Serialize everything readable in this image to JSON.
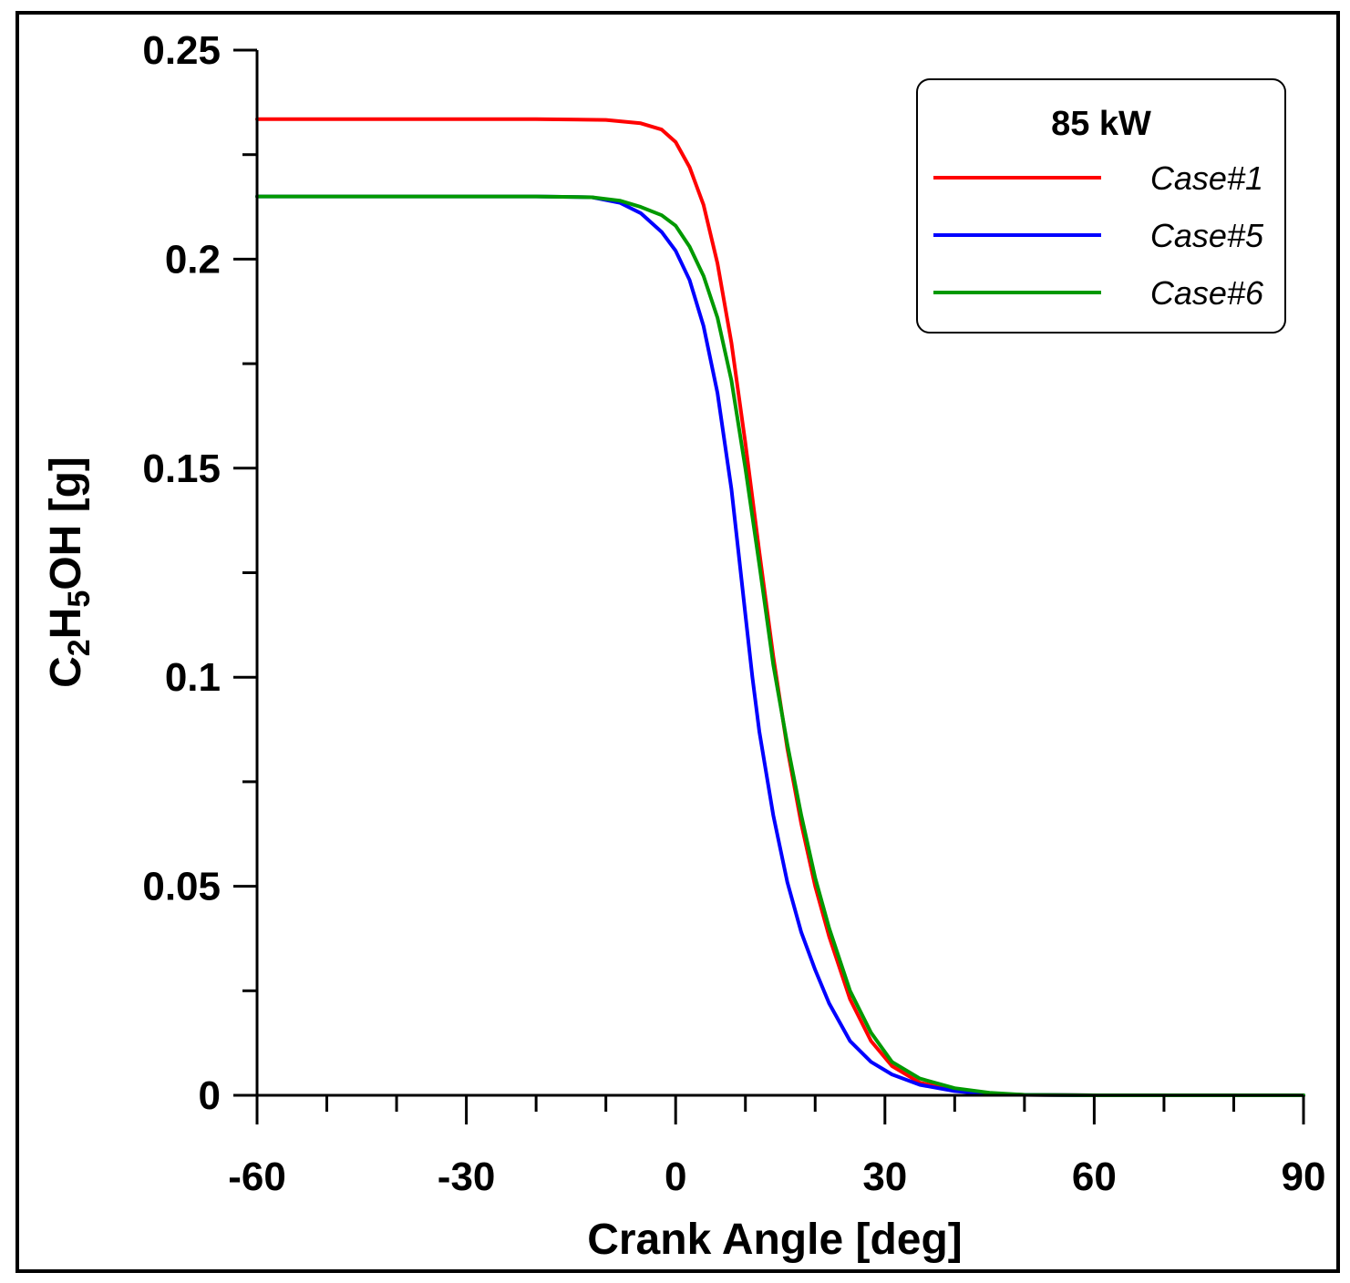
{
  "chart_data": {
    "type": "line",
    "title": "",
    "xlabel": "Crank Angle [deg]",
    "ylabel": {
      "c": "C",
      "sub2": "2",
      "h": "H",
      "sub5": "5",
      "rest": "OH [g]"
    },
    "xlim": [
      -60,
      90
    ],
    "ylim": [
      0,
      0.25
    ],
    "x_ticks": [
      -60,
      -30,
      0,
      30,
      60,
      90
    ],
    "x_tick_labels": [
      "-60",
      "-30",
      "0",
      "30",
      "60",
      "90"
    ],
    "y_ticks": [
      0,
      0.05,
      0.1,
      0.15,
      0.2,
      0.25
    ],
    "y_tick_labels": [
      "0",
      "0.05",
      "0.1",
      "0.15",
      "0.2",
      "0.25"
    ],
    "x_minor_step": 10,
    "y_minor_step": 0.025,
    "grid": false,
    "legend": {
      "title": "85 kW",
      "position": "top-right"
    },
    "series": [
      {
        "name": "Case#1",
        "color": "#ff0000",
        "x": [
          -60,
          -20,
          -10,
          -5,
          -2,
          0,
          2,
          4,
          6,
          8,
          10,
          12,
          14,
          16,
          18,
          20,
          22,
          25,
          28,
          31,
          35,
          40,
          45,
          50,
          60,
          70,
          90
        ],
        "y": [
          0.2335,
          0.2335,
          0.2333,
          0.2325,
          0.231,
          0.228,
          0.222,
          0.213,
          0.199,
          0.18,
          0.156,
          0.13,
          0.105,
          0.083,
          0.065,
          0.05,
          0.038,
          0.023,
          0.013,
          0.007,
          0.003,
          0.0012,
          0.0004,
          0.0001,
          0,
          0,
          0
        ]
      },
      {
        "name": "Case#5",
        "color": "#0000ff",
        "x": [
          -60,
          -20,
          -12,
          -8,
          -5,
          -2,
          0,
          2,
          4,
          6,
          8,
          9,
          10,
          11,
          12,
          14,
          16,
          18,
          20,
          22,
          25,
          28,
          31,
          35,
          40,
          45,
          50,
          60,
          70,
          90
        ],
        "y": [
          0.215,
          0.215,
          0.2148,
          0.2135,
          0.211,
          0.2065,
          0.202,
          0.195,
          0.184,
          0.168,
          0.145,
          0.13,
          0.115,
          0.1,
          0.087,
          0.067,
          0.051,
          0.039,
          0.03,
          0.022,
          0.013,
          0.008,
          0.005,
          0.0025,
          0.001,
          0.0003,
          0.0001,
          0,
          0,
          0
        ]
      },
      {
        "name": "Case#6",
        "color": "#009900",
        "x": [
          -60,
          -20,
          -12,
          -8,
          -5,
          -2,
          0,
          2,
          4,
          6,
          8,
          10,
          12,
          14,
          16,
          18,
          20,
          22,
          25,
          28,
          31,
          35,
          40,
          45,
          50,
          60,
          70,
          90
        ],
        "y": [
          0.215,
          0.215,
          0.2148,
          0.214,
          0.2125,
          0.2105,
          0.208,
          0.203,
          0.196,
          0.186,
          0.171,
          0.15,
          0.127,
          0.103,
          0.084,
          0.067,
          0.052,
          0.04,
          0.025,
          0.015,
          0.008,
          0.004,
          0.0017,
          0.0006,
          0.0001,
          0,
          0,
          0
        ]
      }
    ]
  }
}
